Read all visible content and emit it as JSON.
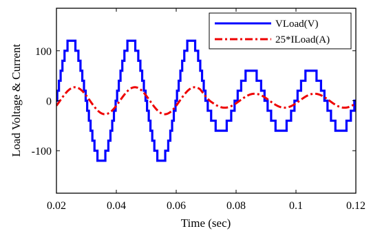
{
  "chart_data": {
    "type": "line",
    "xlabel": "Time (sec)",
    "ylabel": "Load Voltage & Current",
    "xlim": [
      0.02,
      0.12
    ],
    "ylim": [
      -185,
      185
    ],
    "xticks": [
      0.02,
      0.04,
      0.06,
      0.08,
      0.1,
      0.12
    ],
    "xtick_labels": [
      "0.02",
      "0.04",
      "0.06",
      "0.08",
      "0.1",
      "0.12"
    ],
    "yticks": [
      100,
      0,
      -100
    ],
    "ytick_labels": [
      "100",
      "0",
      "-100"
    ],
    "grid": false,
    "legend_position": "top-right",
    "frequency_hz": 50,
    "series": [
      {
        "name": "VLoad(V)",
        "style": "stepped multilevel waveform",
        "color": "#0000ff",
        "segments": [
          {
            "t_start": 0.02,
            "t_end": 0.06,
            "step_levels": [
              0,
              20,
              40,
              60,
              80,
              100,
              120
            ]
          },
          {
            "t_start": 0.06,
            "t_end": 0.07,
            "step_levels": [
              0,
              20,
              40,
              60,
              80,
              100,
              120
            ]
          },
          {
            "t_start": 0.07,
            "t_end": 0.12,
            "step_levels": [
              0,
              20,
              40,
              60
            ]
          }
        ],
        "peak_amplitudes": [
          {
            "t": 0.025,
            "value": 120
          },
          {
            "t": 0.035,
            "value": -120
          },
          {
            "t": 0.045,
            "value": 120
          },
          {
            "t": 0.055,
            "value": -120
          },
          {
            "t": 0.065,
            "value": 120
          },
          {
            "t": 0.075,
            "value": -60
          },
          {
            "t": 0.085,
            "value": 60
          },
          {
            "t": 0.095,
            "value": -60
          },
          {
            "t": 0.105,
            "value": 60
          },
          {
            "t": 0.115,
            "value": -60
          }
        ]
      },
      {
        "name": "25*ILoad(A)",
        "style": "dash-dot sinusoid",
        "color": "#ee0000",
        "phase_lag_s": 0.0012,
        "peak_amplitudes": [
          {
            "t": 0.02,
            "value": 27
          },
          {
            "t": 0.06,
            "value": 27
          },
          {
            "t": 0.07,
            "value": 14
          },
          {
            "t": 0.12,
            "value": 14
          }
        ]
      }
    ]
  }
}
